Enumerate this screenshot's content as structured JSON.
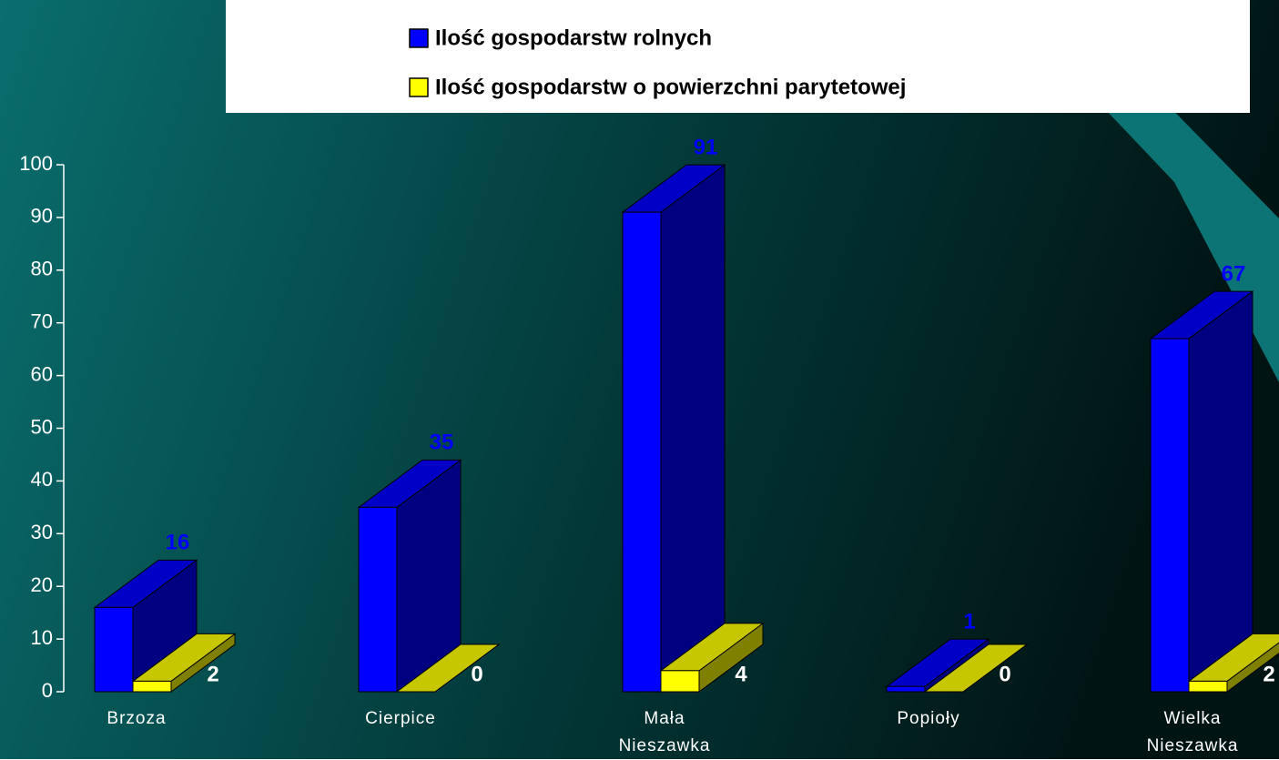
{
  "chart_data": {
    "type": "bar3d",
    "categories": [
      "Brzoza",
      "Cierpice",
      "Mała Nieszawka",
      "Popioły",
      "Wielka Nieszawka"
    ],
    "series": [
      {
        "name": "Ilość gospodarstw rolnych",
        "color": "#0000ff",
        "values": [
          16,
          35,
          91,
          1,
          67
        ]
      },
      {
        "name": "Ilość gospodarstw o powierzchni parytetowej",
        "color": "#ffff00",
        "values": [
          2,
          0,
          4,
          0,
          2
        ]
      }
    ],
    "ylim": [
      0,
      100
    ],
    "yticks": [
      0,
      10,
      20,
      30,
      40,
      50,
      60,
      70,
      80,
      90,
      100
    ],
    "legend": "top"
  }
}
